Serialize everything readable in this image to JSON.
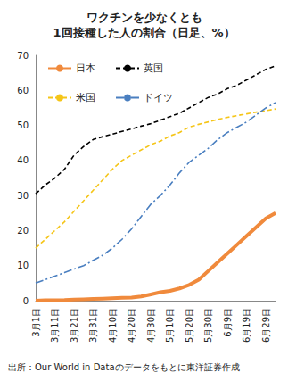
{
  "chart_data": {
    "type": "line",
    "title": "ワクチンを少なくとも\n1回接種した人の割合（日足、%）",
    "annotations": [
      "出所：Our World in Dataのデータをもとに東洋証券作成"
    ],
    "categories": [
      "3月1日",
      null,
      "3月11日",
      null,
      "3月21日",
      null,
      "3月31日",
      null,
      "4月10日",
      null,
      "4月20日",
      null,
      "4月30日",
      null,
      "5月10日",
      null,
      "5月20日",
      null,
      "5月30日",
      null,
      "6月9日",
      null,
      "6月19日",
      null,
      "6月29日",
      null
    ],
    "series": [
      {
        "name": "日本",
        "color": "#f08a3c",
        "line_style": "solid",
        "marker": "none",
        "values": [
          0,
          0.1,
          0.1,
          0.2,
          0.3,
          0.4,
          0.5,
          0.6,
          0.7,
          0.8,
          0.9,
          1.2,
          1.8,
          2.4,
          2.8,
          3.5,
          4.5,
          6,
          8.5,
          11,
          13.5,
          16,
          18.5,
          21,
          23.5,
          25
        ]
      },
      {
        "name": "英国",
        "color": "#000000",
        "line_style": "dashed",
        "marker": "none",
        "values": [
          30.5,
          33,
          35,
          37.5,
          41.5,
          44,
          46,
          46.8,
          47.5,
          48.3,
          49,
          49.8,
          50.5,
          51.5,
          52.5,
          53.5,
          55,
          56.5,
          58,
          59,
          60.5,
          61.5,
          63,
          64.5,
          66,
          67
        ]
      },
      {
        "name": "米国",
        "color": "#f5c518",
        "line_style": "dashed",
        "marker": "none",
        "values": [
          15,
          17.5,
          20,
          22.5,
          25.5,
          28.5,
          31.5,
          34.5,
          37.5,
          40,
          41.5,
          43,
          44.5,
          45.5,
          47,
          48,
          49.5,
          50.3,
          51,
          51.7,
          52.3,
          52.8,
          53.3,
          53.8,
          54.2,
          54.7
        ]
      },
      {
        "name": "ドイツ",
        "color": "#4a7fc0",
        "line_style": "dashdot",
        "marker": "none",
        "values": [
          5,
          6,
          7,
          8,
          9,
          10,
          11.5,
          13,
          15,
          17.5,
          20.5,
          24,
          27.5,
          30,
          33,
          36.5,
          39.5,
          41.5,
          43.5,
          46,
          48,
          49.5,
          51,
          53,
          55,
          56.5
        ]
      }
    ],
    "ylim": [
      0,
      70
    ],
    "yticks": [
      0,
      10,
      20,
      30,
      40,
      50,
      60,
      70
    ],
    "grid": false,
    "legend": "top-left"
  }
}
